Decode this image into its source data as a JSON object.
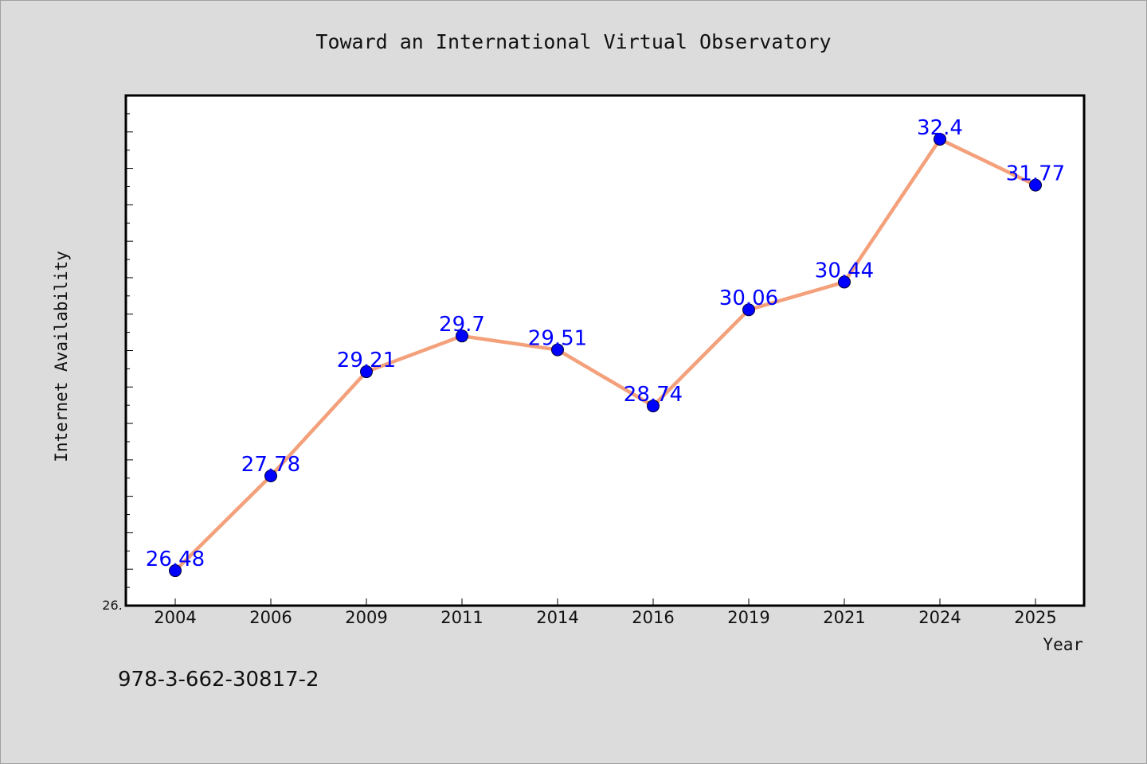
{
  "chart_data": {
    "type": "line",
    "title": "Toward an International Virtual Observatory",
    "xlabel": "Year",
    "ylabel": "Internet Availability",
    "categories": [
      "2004",
      "2006",
      "2009",
      "2011",
      "2014",
      "2016",
      "2019",
      "2021",
      "2024",
      "2025"
    ],
    "series": [
      {
        "values": [
          26.48,
          27.78,
          29.21,
          29.7,
          29.51,
          28.74,
          30.06,
          30.44,
          32.4,
          31.77
        ],
        "labels": [
          "26.48",
          "27.78",
          "29.21",
          "29.7",
          "29.51",
          "28.74",
          "30.06",
          "30.44",
          "32.4",
          "31.77"
        ]
      }
    ],
    "ylim": [
      26.0,
      33.0
    ],
    "y_tick_label": "26.",
    "grid": false,
    "legend": "none",
    "colors": {
      "line": "#f4a07a",
      "marker": "#0000ff",
      "data_label": "#0000ff",
      "plot_background": "#ffffff",
      "page_background": "#dcdcdc"
    }
  },
  "annotation": {
    "isbn": "978-3-662-30817-2"
  }
}
